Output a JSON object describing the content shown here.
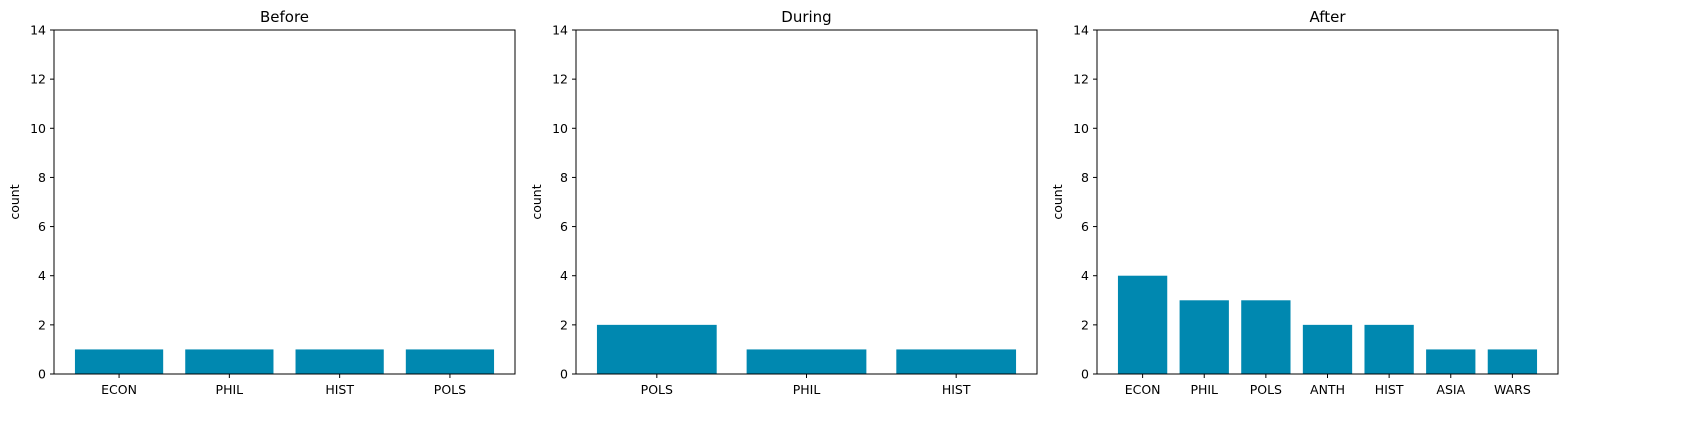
{
  "chart_data": [
    {
      "type": "bar",
      "title": "Before",
      "xlabel": "",
      "ylabel": "count",
      "categories": [
        "ECON",
        "PHIL",
        "HIST",
        "POLS"
      ],
      "values": [
        1,
        1,
        1,
        1
      ],
      "ylim": [
        0,
        14
      ],
      "yticks": [
        0,
        2,
        4,
        6,
        8,
        10,
        12,
        14
      ],
      "bar_color": "#0088b0",
      "grid": false
    },
    {
      "type": "bar",
      "title": "During",
      "xlabel": "",
      "ylabel": "count",
      "categories": [
        "POLS",
        "PHIL",
        "HIST"
      ],
      "values": [
        2,
        1,
        1
      ],
      "ylim": [
        0,
        14
      ],
      "yticks": [
        0,
        2,
        4,
        6,
        8,
        10,
        12,
        14
      ],
      "bar_color": "#0088b0",
      "grid": false
    },
    {
      "type": "bar",
      "title": "After",
      "xlabel": "",
      "ylabel": "count",
      "categories": [
        "ECON",
        "PHIL",
        "POLS",
        "ANTH",
        "HIST",
        "ASIA",
        "WARS"
      ],
      "values": [
        4,
        3,
        3,
        2,
        2,
        1,
        1
      ],
      "ylim": [
        0,
        14
      ],
      "yticks": [
        0,
        2,
        4,
        6,
        8,
        10,
        12,
        14
      ],
      "bar_color": "#0088b0",
      "grid": false
    }
  ]
}
